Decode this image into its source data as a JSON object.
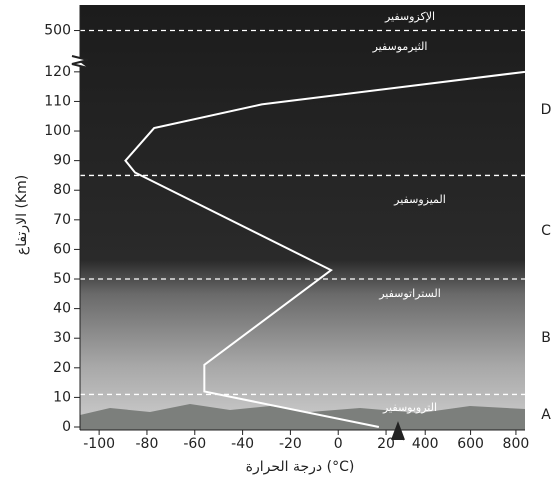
{
  "chart_data": {
    "type": "line",
    "x_label": "درجة الحرارة (°C)",
    "y_label": "الارتفاع (Km)",
    "x_segments": [
      {
        "lim": [
          -108,
          25
        ],
        "ticks": [
          -100,
          -80,
          -60,
          -40,
          -20,
          0,
          20
        ]
      },
      {
        "lim": [
          280,
          840
        ],
        "ticks": [
          400,
          600,
          800
        ]
      }
    ],
    "y_segments": [
      {
        "lim": [
          0,
          124
        ],
        "ticks": [
          0,
          10,
          20,
          30,
          40,
          50,
          60,
          70,
          80,
          90,
          100,
          110,
          120
        ]
      },
      {
        "lim": [
          470,
          526
        ],
        "ticks": [
          500
        ]
      }
    ],
    "series": [
      {
        "color": "#ffffff",
        "x": [
          17,
          -56,
          -56,
          -3,
          -85,
          -89,
          -77,
          -32,
          840
        ],
        "values": [
          0,
          12,
          21,
          53,
          86,
          90,
          101,
          109,
          120
        ]
      }
    ],
    "boundaries": [
      11,
      50,
      85,
      500
    ],
    "layers": [
      {
        "label": "التروبوسفير",
        "letter": "A"
      },
      {
        "label": "الستراتوسفير",
        "letter": "B"
      },
      {
        "label": "الميزوسفير",
        "letter": "C"
      },
      {
        "label": "الثيرموسفير",
        "letter": "D"
      },
      {
        "label": "الإكزوسفير"
      }
    ]
  }
}
